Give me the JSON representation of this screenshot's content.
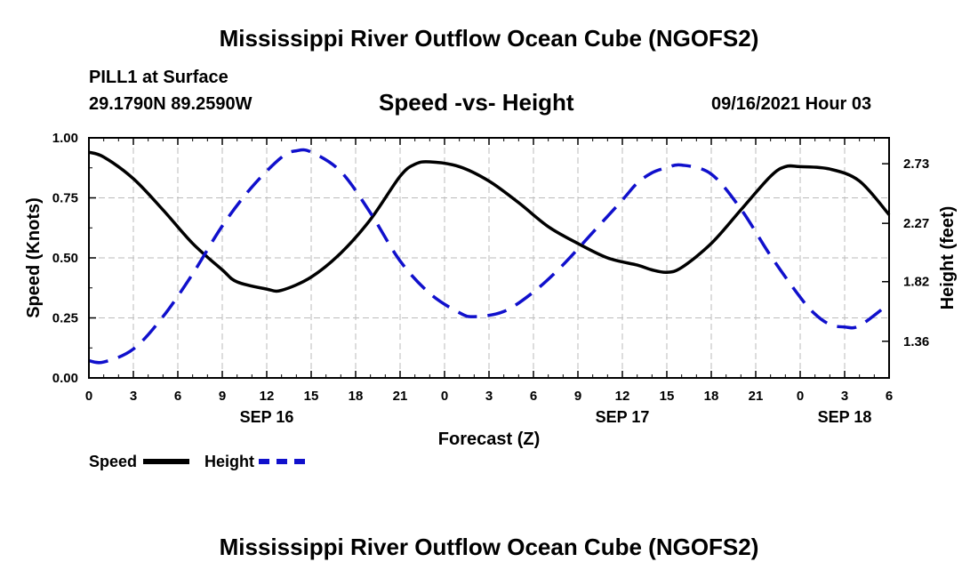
{
  "header": {
    "title": "Mississippi River Outflow Ocean Cube (NGOFS2)",
    "station": "PILL1 at Surface",
    "coords": "29.1790N  89.2590W",
    "plot_title": "Speed -vs- Height",
    "date": "09/16/2021 Hour 03"
  },
  "footer": {
    "title": "Mississippi River Outflow Ocean Cube (NGOFS2)"
  },
  "legend": {
    "speed_label": "Speed",
    "height_label": "Height"
  },
  "colors": {
    "speed": "#000000",
    "height": "#1010cc",
    "grid": "#bbbbbb"
  },
  "chart_data": {
    "type": "line",
    "title": "Speed -vs- Height",
    "xlabel": "Forecast (Z)",
    "ylabel": "Speed (Knots)",
    "y2label": "Height (feet)",
    "xlim": [
      0,
      54
    ],
    "ylim": [
      0,
      1.0
    ],
    "y2lim": [
      1.077,
      2.93
    ],
    "x_ticks": [
      0,
      3,
      6,
      9,
      12,
      15,
      18,
      21,
      24,
      27,
      30,
      33,
      36,
      39,
      42,
      45,
      48,
      51,
      54
    ],
    "x_tick_labels": [
      "0",
      "3",
      "6",
      "9",
      "12",
      "15",
      "18",
      "21",
      "0",
      "3",
      "6",
      "9",
      "12",
      "15",
      "18",
      "21",
      "0",
      "3",
      "6"
    ],
    "date_labels": [
      {
        "x": 12,
        "label": "SEP 16"
      },
      {
        "x": 36,
        "label": "SEP 17"
      },
      {
        "x": 51,
        "label": "SEP 18"
      }
    ],
    "y_ticks": [
      0.0,
      0.25,
      0.5,
      0.75,
      1.0
    ],
    "y_tick_labels": [
      "0.00",
      "0.25",
      "0.50",
      "0.75",
      "1.00"
    ],
    "y2_ticks": [
      1.36,
      1.82,
      2.27,
      2.73
    ],
    "y2_tick_labels": [
      "1.36",
      "1.82",
      "2.27",
      "2.73"
    ],
    "grid": true,
    "series": [
      {
        "name": "Speed",
        "axis": "left",
        "style": "solid",
        "x": [
          0,
          1,
          3,
          5,
          7,
          9,
          10,
          12,
          13,
          15,
          17,
          19,
          21,
          22,
          23,
          25,
          27,
          29,
          31,
          33,
          35,
          37,
          38,
          39,
          40,
          42,
          44,
          46,
          47,
          48,
          50,
          52,
          54
        ],
        "values": [
          0.94,
          0.92,
          0.83,
          0.7,
          0.56,
          0.45,
          0.4,
          0.37,
          0.365,
          0.42,
          0.52,
          0.66,
          0.84,
          0.89,
          0.9,
          0.88,
          0.82,
          0.73,
          0.63,
          0.56,
          0.5,
          0.47,
          0.45,
          0.44,
          0.46,
          0.56,
          0.7,
          0.84,
          0.88,
          0.88,
          0.87,
          0.82,
          0.68
        ]
      },
      {
        "name": "Height",
        "axis": "right",
        "style": "dashed",
        "x": [
          0,
          1,
          3,
          5,
          7,
          9,
          11,
          13,
          14,
          15,
          17,
          19,
          21,
          23,
          25,
          26,
          28,
          30,
          32,
          34,
          36,
          37,
          38,
          39,
          40,
          42,
          44,
          46,
          48,
          49,
          50,
          51,
          52,
          54
        ],
        "values": [
          1.21,
          1.2,
          1.3,
          1.55,
          1.88,
          2.25,
          2.55,
          2.78,
          2.83,
          2.82,
          2.67,
          2.35,
          1.98,
          1.73,
          1.58,
          1.55,
          1.59,
          1.74,
          1.95,
          2.2,
          2.45,
          2.58,
          2.66,
          2.7,
          2.72,
          2.65,
          2.38,
          2.02,
          1.7,
          1.57,
          1.49,
          1.47,
          1.48,
          1.65
        ]
      }
    ]
  }
}
